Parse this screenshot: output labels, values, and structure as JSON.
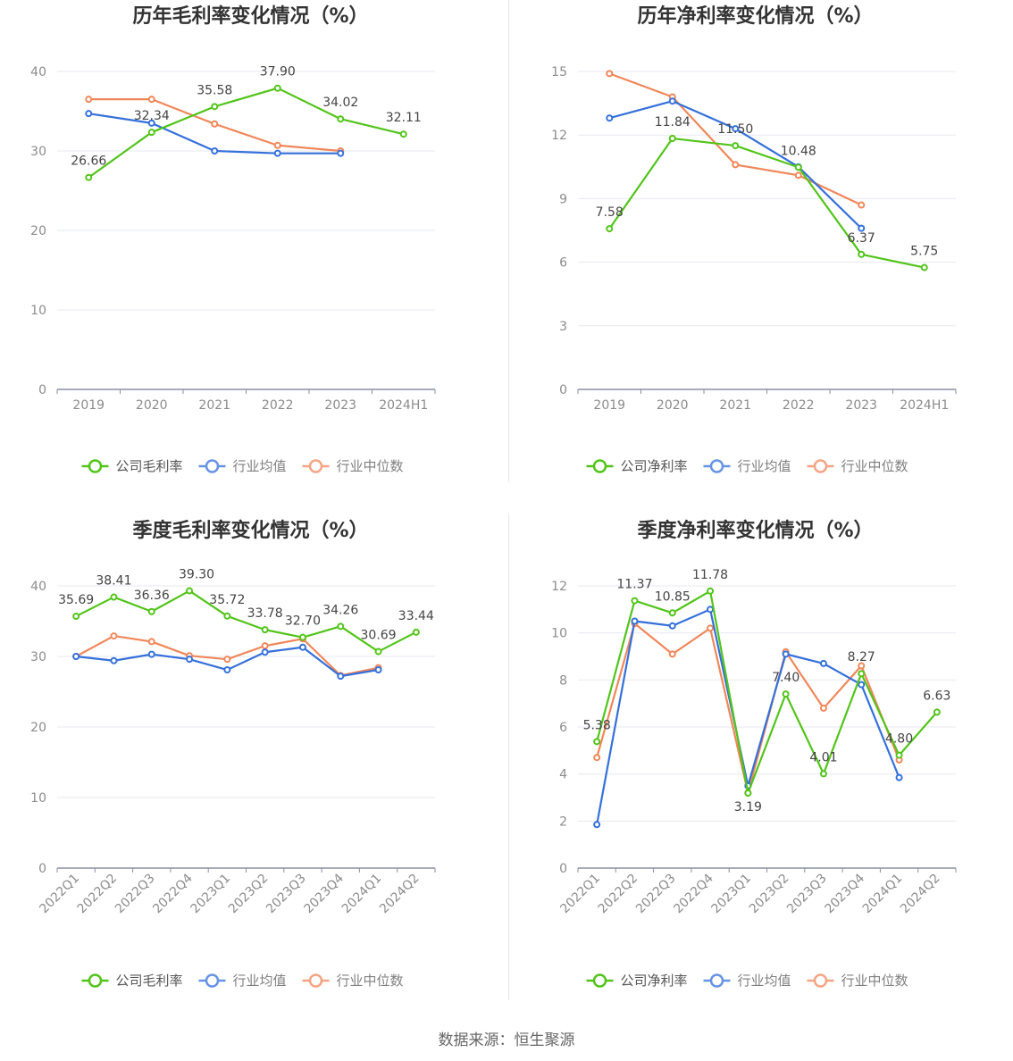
{
  "source_label": "数据来源：恒生聚源",
  "colors": {
    "company": "#52c41a",
    "avg": "#3570db",
    "median": "#f0875a",
    "grid": "#e6e9f0",
    "axis": "#8a8fa3"
  },
  "chart_data": [
    {
      "id": "annual-gross",
      "type": "line",
      "title": "历年毛利率变化情况（%）",
      "categories": [
        "2019",
        "2020",
        "2021",
        "2022",
        "2023",
        "2024H1"
      ],
      "ylim": [
        0,
        40
      ],
      "yticks": [
        0,
        10,
        20,
        30,
        40
      ],
      "series": [
        {
          "name": "公司毛利率",
          "key": "company",
          "values": [
            26.66,
            32.34,
            35.58,
            37.9,
            34.02,
            32.11
          ],
          "labels": [
            "26.66",
            "32.34",
            "35.58",
            "37.90",
            "34.02",
            "32.11"
          ]
        },
        {
          "name": "行业均值",
          "key": "avg",
          "values": [
            34.7,
            33.5,
            30.0,
            29.7,
            29.7,
            null
          ]
        },
        {
          "name": "行业中位数",
          "key": "median",
          "values": [
            36.5,
            36.5,
            33.4,
            30.7,
            30.0,
            null
          ]
        }
      ],
      "legend": [
        "公司毛利率",
        "行业均值",
        "行业中位数"
      ]
    },
    {
      "id": "annual-net",
      "type": "line",
      "title": "历年净利率变化情况（%）",
      "categories": [
        "2019",
        "2020",
        "2021",
        "2022",
        "2023",
        "2024H1"
      ],
      "ylim": [
        0,
        15
      ],
      "yticks": [
        0,
        3,
        6,
        9,
        12,
        15
      ],
      "series": [
        {
          "name": "公司净利率",
          "key": "company",
          "values": [
            7.58,
            11.84,
            11.5,
            10.48,
            6.37,
            5.75
          ],
          "labels": [
            "7.58",
            "11.84",
            "11.50",
            "10.48",
            "6.37",
            "5.75"
          ]
        },
        {
          "name": "行业均值",
          "key": "avg",
          "values": [
            12.8,
            13.6,
            12.3,
            10.5,
            7.6,
            null
          ]
        },
        {
          "name": "行业中位数",
          "key": "median",
          "values": [
            14.9,
            13.8,
            10.6,
            10.1,
            8.7,
            null
          ]
        }
      ],
      "legend": [
        "公司净利率",
        "行业均值",
        "行业中位数"
      ]
    },
    {
      "id": "quarterly-gross",
      "type": "line",
      "title": "季度毛利率变化情况（%）",
      "categories": [
        "2022Q1",
        "2022Q2",
        "2022Q3",
        "2022Q4",
        "2023Q1",
        "2023Q2",
        "2023Q3",
        "2023Q4",
        "2024Q1",
        "2024Q2"
      ],
      "ylim": [
        0,
        40
      ],
      "yticks": [
        0,
        10,
        20,
        30,
        40
      ],
      "series": [
        {
          "name": "公司毛利率",
          "key": "company",
          "values": [
            35.69,
            38.41,
            36.36,
            39.3,
            35.72,
            33.78,
            32.7,
            34.26,
            30.69,
            33.44
          ],
          "labels": [
            "35.69",
            "38.41",
            "36.36",
            "39.30",
            "35.72",
            "33.78",
            "32.70",
            "34.26",
            "30.69",
            "33.44"
          ]
        },
        {
          "name": "行业均值",
          "key": "avg",
          "values": [
            30.0,
            29.4,
            30.3,
            29.6,
            28.1,
            30.6,
            31.3,
            27.2,
            28.1,
            null
          ]
        },
        {
          "name": "行业中位数",
          "key": "median",
          "values": [
            30.0,
            32.9,
            32.1,
            30.1,
            29.6,
            31.5,
            32.5,
            27.3,
            28.4,
            null
          ]
        }
      ],
      "legend": [
        "公司毛利率",
        "行业均值",
        "行业中位数"
      ]
    },
    {
      "id": "quarterly-net",
      "type": "line",
      "title": "季度净利率变化情况（%）",
      "categories": [
        "2022Q1",
        "2022Q2",
        "2022Q3",
        "2022Q4",
        "2023Q1",
        "2023Q2",
        "2023Q3",
        "2023Q4",
        "2024Q1",
        "2024Q2"
      ],
      "ylim": [
        0,
        12
      ],
      "yticks": [
        0,
        2,
        4,
        6,
        8,
        10,
        12
      ],
      "series": [
        {
          "name": "公司净利率",
          "key": "company",
          "values": [
            5.38,
            11.37,
            10.85,
            11.78,
            3.19,
            7.4,
            4.01,
            8.27,
            4.8,
            6.63
          ],
          "labels": [
            "5.38",
            "11.37",
            "10.85",
            "11.78",
            "3.19",
            "7.40",
            "4.01",
            "8.27",
            "4.80",
            "6.63"
          ]
        },
        {
          "name": "行业均值",
          "key": "avg",
          "values": [
            1.85,
            10.5,
            10.3,
            11.0,
            3.5,
            9.1,
            8.7,
            7.8,
            3.85,
            null
          ]
        },
        {
          "name": "行业中位数",
          "key": "median",
          "values": [
            4.7,
            10.4,
            9.1,
            10.2,
            3.2,
            9.2,
            6.8,
            8.6,
            4.6,
            null
          ]
        }
      ],
      "legend": [
        "公司净利率",
        "行业均值",
        "行业中位数"
      ]
    }
  ]
}
